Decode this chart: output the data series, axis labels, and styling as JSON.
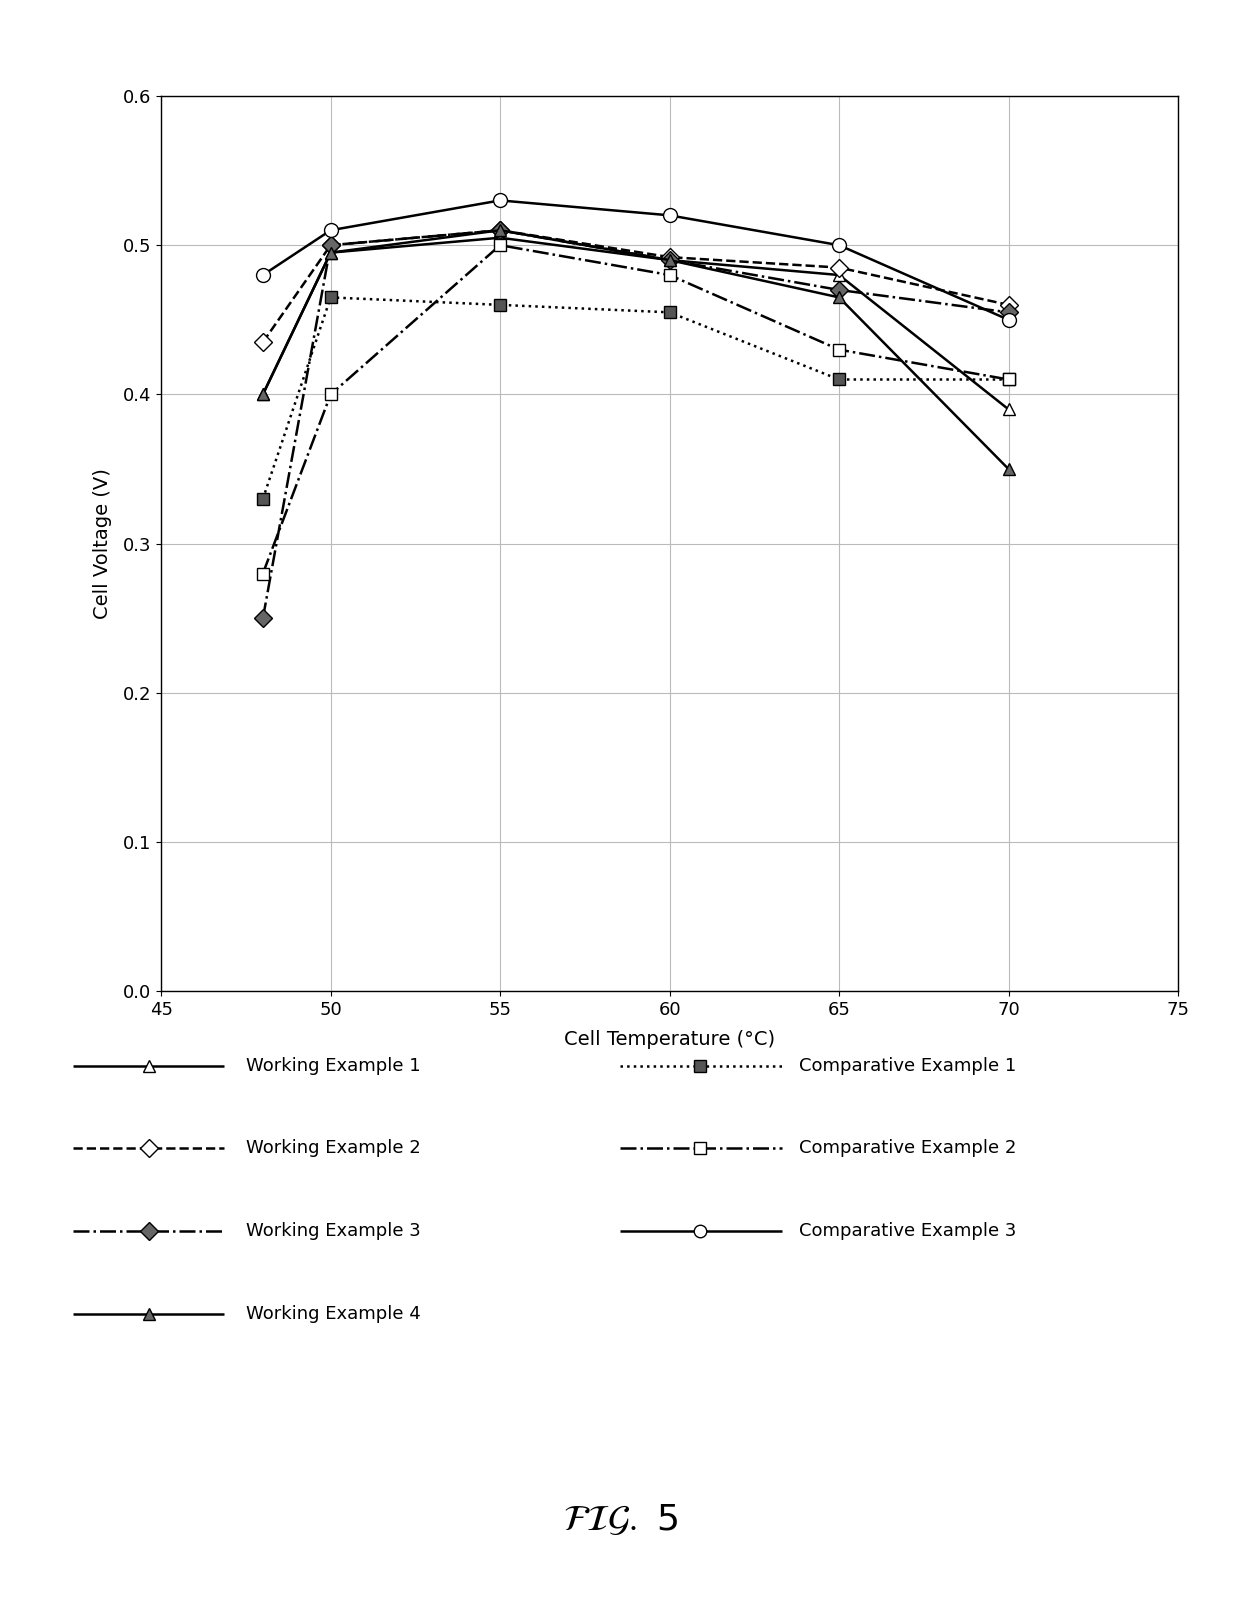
{
  "xlabel": "Cell Temperature (°C)",
  "ylabel": "Cell Voltage (V)",
  "xlim": [
    45,
    75
  ],
  "ylim": [
    0.0,
    0.6
  ],
  "xticks": [
    45,
    50,
    55,
    60,
    65,
    70,
    75
  ],
  "yticks": [
    0.0,
    0.1,
    0.2,
    0.3,
    0.4,
    0.5,
    0.6
  ],
  "series": [
    {
      "name": "Working Example 1",
      "x": [
        48,
        50,
        55,
        60,
        65,
        70
      ],
      "y": [
        0.4,
        0.495,
        0.505,
        0.49,
        0.48,
        0.39
      ],
      "color": "#000000",
      "linestyle": "-",
      "marker": "^",
      "markerfacecolor": "white",
      "markersize": 9,
      "linewidth": 1.8,
      "legend_linestyle": "-",
      "legend_marker": "^",
      "legend_mfc": "white"
    },
    {
      "name": "Working Example 2",
      "x": [
        48,
        50,
        55,
        60,
        65,
        70
      ],
      "y": [
        0.435,
        0.5,
        0.51,
        0.492,
        0.485,
        0.46
      ],
      "color": "#000000",
      "linestyle": "--",
      "marker": "D",
      "markerfacecolor": "white",
      "markersize": 9,
      "linewidth": 1.8,
      "legend_linestyle": "--",
      "legend_marker": "D",
      "legend_mfc": "white"
    },
    {
      "name": "Working Example 3",
      "x": [
        48,
        50,
        55,
        60,
        65,
        70
      ],
      "y": [
        0.25,
        0.5,
        0.51,
        0.49,
        0.47,
        0.455
      ],
      "color": "#000000",
      "linestyle": "-.",
      "marker": "D",
      "markerfacecolor": "#666666",
      "markersize": 9,
      "linewidth": 1.8,
      "legend_linestyle": "-.",
      "legend_marker": "D",
      "legend_mfc": "#666666"
    },
    {
      "name": "Working Example 4",
      "x": [
        48,
        50,
        55,
        60,
        65,
        70
      ],
      "y": [
        0.4,
        0.495,
        0.51,
        0.49,
        0.465,
        0.35
      ],
      "color": "#000000",
      "linestyle": "-",
      "marker": "^",
      "markerfacecolor": "#666666",
      "markersize": 9,
      "linewidth": 1.8,
      "legend_linestyle": "-",
      "legend_marker": "^",
      "legend_mfc": "#666666"
    },
    {
      "name": "Comparative Example 1",
      "x": [
        48,
        50,
        55,
        60,
        65,
        70
      ],
      "y": [
        0.33,
        0.465,
        0.46,
        0.455,
        0.41,
        0.41
      ],
      "color": "#000000",
      "linestyle": "dotted",
      "marker": "s",
      "markerfacecolor": "#555555",
      "markersize": 9,
      "linewidth": 1.8,
      "legend_linestyle": "dotted",
      "legend_marker": "s",
      "legend_mfc": "#555555"
    },
    {
      "name": "Comparative Example 2",
      "x": [
        48,
        50,
        55,
        60,
        65,
        70
      ],
      "y": [
        0.28,
        0.4,
        0.5,
        0.48,
        0.43,
        0.41
      ],
      "color": "#000000",
      "linestyle": "-.",
      "marker": "s",
      "markerfacecolor": "white",
      "markersize": 9,
      "linewidth": 1.8,
      "legend_linestyle": "-.",
      "legend_marker": "s",
      "legend_mfc": "white"
    },
    {
      "name": "Comparative Example 3",
      "x": [
        48,
        50,
        55,
        60,
        65,
        70
      ],
      "y": [
        0.48,
        0.51,
        0.53,
        0.52,
        0.5,
        0.45
      ],
      "color": "#000000",
      "linestyle": "-",
      "marker": "o",
      "markerfacecolor": "white",
      "markersize": 10,
      "linewidth": 1.8,
      "legend_linestyle": "-",
      "legend_marker": "o",
      "legend_mfc": "white"
    }
  ],
  "legend_left": [
    {
      "name": "Working Example 1",
      "linestyle": "-",
      "marker": "^",
      "mfc": "white"
    },
    {
      "name": "Working Example 2",
      "linestyle": "--",
      "marker": "D",
      "mfc": "white"
    },
    {
      "name": "Working Example 3",
      "linestyle": "-.",
      "marker": "D",
      "mfc": "#666666"
    },
    {
      "name": "Working Example 4",
      "linestyle": "-",
      "marker": "^",
      "mfc": "#666666"
    }
  ],
  "legend_right": [
    {
      "name": "Comparative Example 1",
      "linestyle": "dotted",
      "marker": "s",
      "mfc": "#555555"
    },
    {
      "name": "Comparative Example 2",
      "linestyle": "-.",
      "marker": "s",
      "mfc": "white"
    },
    {
      "name": "Comparative Example 3",
      "linestyle": "-",
      "marker": "o",
      "mfc": "white"
    }
  ]
}
